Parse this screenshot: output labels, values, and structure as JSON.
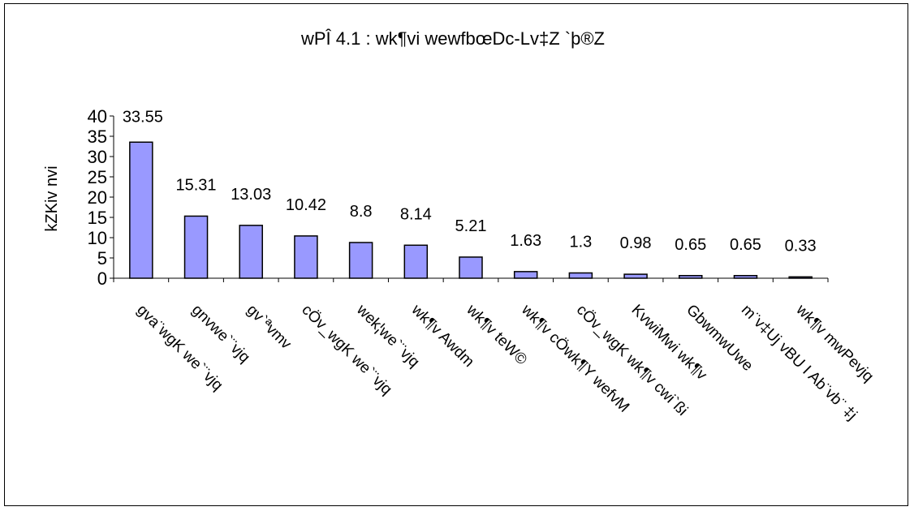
{
  "chart_data": {
    "type": "bar",
    "title": "wPÎ 4.1 : wk¶vi wewfbœDc-Lv‡Z `þ®Z",
    "ylabel": "kZKiv nvi",
    "xlabel": "",
    "ylim": [
      0,
      40
    ],
    "yticks": [
      0,
      5,
      10,
      15,
      20,
      25,
      30,
      35,
      40
    ],
    "categories": [
      "gva¨wgK we`¨vjq",
      "gnvwe`¨vjq",
      "gv`ªvmv",
      "cÖv_wgK we`¨vjq",
      "wek¦we`¨vjq",
      "wk¶v Awdm",
      "wk¶v teW©",
      "wk¶v cÖwk¶Y wefvM",
      "cÖv_wgK wk¶v cwi`ßi",
      "KvwiMwi wk¶v",
      "GbwmwUwe",
      "m¨v‡Uj vBU I Ab¨vb¨ ‡j",
      "wk¶v mwPevjq"
    ],
    "values": [
      33.55,
      15.31,
      13.03,
      10.42,
      8.8,
      8.14,
      5.21,
      1.63,
      1.3,
      0.98,
      0.65,
      0.65,
      0.33
    ],
    "data_labels": [
      "33.55",
      "15.31",
      "13.03",
      "10.42",
      "8.8",
      "8.14",
      "5.21",
      "1.63",
      "1.3",
      "0.98",
      "0.65",
      "0.65",
      "0.33"
    ],
    "bar_color": "#9999ff",
    "grid": false,
    "legend": "none"
  }
}
